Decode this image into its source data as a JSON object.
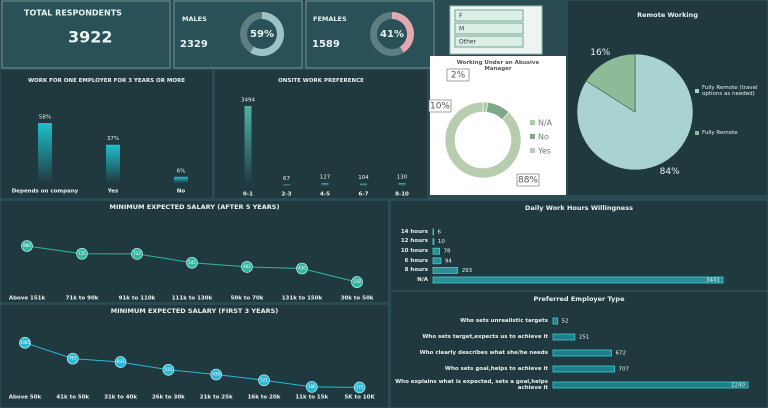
{
  "kpis": [
    {
      "label": "TOTAL RESPONDENTS",
      "value": 3922
    },
    {
      "label": "MALES",
      "value": 2329,
      "pct": 59,
      "pct_label": "59%"
    },
    {
      "label": "FEMALES",
      "value": 1589,
      "pct": 41,
      "pct_label": "41%"
    }
  ],
  "slicer": [
    "F",
    "M",
    "Other"
  ],
  "chart_data": [
    {
      "type": "pie",
      "title": "Remote Working",
      "categories": [
        "Fully Remote (travel options as needed)",
        "Fully Remote"
      ],
      "values": [
        84,
        16
      ],
      "value_labels": [
        "84%",
        "16%"
      ],
      "colors": [
        "#a9d3d0",
        "#8dbb97"
      ]
    },
    {
      "type": "donut",
      "title": "Working Under an Abusive Manager",
      "categories": [
        "N/A",
        "No",
        "Yes"
      ],
      "values": [
        2,
        10,
        88
      ],
      "value_labels": [
        "2%",
        "10%",
        "88%"
      ],
      "colors": [
        "#a7cfa2",
        "#7fa88a",
        "#b8cdb0"
      ]
    },
    {
      "type": "bar",
      "title": "WORK FOR ONE EMPLOYER FOR 3 YEARS OR MORE",
      "categories": [
        "Depends on company",
        "Yes",
        "No"
      ],
      "values": [
        58,
        37,
        6
      ],
      "value_labels": [
        "58%",
        "37%",
        "6%"
      ],
      "color": "#1fc0cc"
    },
    {
      "type": "bar",
      "title": "ONSITE WORK PREFERENCE",
      "categories": [
        "0-1",
        "2-3",
        "4-5",
        "6-7",
        "8-10"
      ],
      "values": [
        3494,
        67,
        127,
        104,
        130
      ],
      "color": "#4fb3a8"
    },
    {
      "type": "line",
      "title": "MINIMUM EXPECTED SALARY (AFTER 5 YEARS)",
      "categories": [
        "Above 151k",
        "71k to 90k",
        "91k to 110k",
        "111k to 130k",
        "50k to 70k",
        "131k to 150k",
        "30k to 50k"
      ],
      "values": [
        880,
        725,
        722,
        545,
        462,
        430,
        158
      ],
      "color": "#2fb89e"
    },
    {
      "type": "line",
      "title": "MINIMUM EXPECTED SALARY (FIRST 3 YEARS)",
      "categories": [
        "Above 50k",
        "41k to 50k",
        "31k to 40k",
        "26k to 30k",
        "21k to 25k",
        "16k to 20k",
        "11k to 15k",
        "5K to 10K"
      ],
      "values": [
        1085,
        763,
        693,
        535,
        439,
        321,
        186,
        175
      ],
      "color": "#29b8d6"
    },
    {
      "type": "hbar",
      "title": "Daily Work Hours Willingness",
      "categories": [
        "14 hours",
        "12 hours",
        "10 hours",
        "6 hours",
        "8 hours",
        "N/A"
      ],
      "values": [
        6,
        10,
        78,
        94,
        293,
        3441
      ],
      "color": "#2a8f95"
    },
    {
      "type": "hbar",
      "title": "Preferred Employer Type",
      "categories": [
        "Who sets unrealistic targets",
        "Who sets target,expects us to achieve it",
        "Who clearly describes what she/he needs",
        "Who sets goal,helps to achieve it",
        "Who explains what is expected, sets a goal,helps achieve it"
      ],
      "values": [
        52,
        251,
        672,
        707,
        2240
      ],
      "color": "#1d7f88"
    }
  ]
}
